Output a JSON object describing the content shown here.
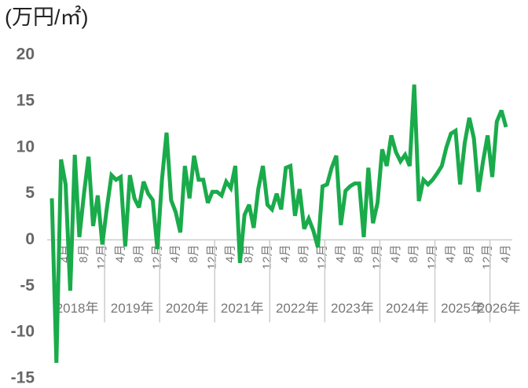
{
  "chart_data": {
    "type": "line",
    "title": "(万円/㎡)",
    "categories": [
      null,
      null,
      null,
      "4月",
      null,
      null,
      null,
      "8月",
      null,
      null,
      null,
      "12月",
      null,
      null,
      null,
      "4月",
      null,
      null,
      null,
      "8月",
      null,
      null,
      null,
      "12月",
      null,
      null,
      null,
      "4月",
      null,
      null,
      null,
      "8月",
      null,
      null,
      null,
      "12月",
      null,
      null,
      null,
      "4月",
      null,
      null,
      null,
      "8月",
      null,
      null,
      null,
      "12月",
      null,
      null,
      null,
      "4月",
      null,
      null,
      null,
      "8月",
      null,
      null,
      null,
      "12月",
      null,
      null,
      null,
      "4月",
      null,
      null,
      null,
      "8月",
      null,
      null,
      null,
      "12月",
      null,
      null,
      null,
      "4月",
      null,
      null,
      null,
      "8月",
      null,
      null,
      null,
      "12月",
      null,
      null,
      null,
      "4月",
      null,
      null,
      null,
      "8月",
      null,
      null,
      null,
      "12月",
      null,
      null,
      null,
      "4月"
    ],
    "year_labels": [
      "2018年",
      "2019年",
      "2020年",
      "2021年",
      "2022年",
      "2023年",
      "2024年",
      "2025年",
      "2026年"
    ],
    "values": [
      4.5,
      -13.3,
      8.7,
      6,
      -5.5,
      9.2,
      0.3,
      5,
      9,
      1.5,
      4.8,
      -0.5,
      3.5,
      7,
      6.5,
      6.8,
      -0.7,
      7,
      4.5,
      3.5,
      6.3,
      5,
      4.3,
      -1,
      6.5,
      11.6,
      4.3,
      3,
      0.8,
      8,
      4.5,
      9.1,
      6.5,
      6.5,
      4,
      5.2,
      5.2,
      4.8,
      6.3,
      5.6,
      8,
      -2.5,
      2.7,
      3.8,
      1.3,
      5.5,
      8,
      3.8,
      3.3,
      5,
      3.3,
      7.8,
      8,
      2.6,
      5.5,
      1.2,
      2.3,
      1,
      -0.8,
      5.8,
      6,
      7.8,
      9.1,
      1.6,
      5.3,
      5.8,
      6.1,
      6.1,
      0.3,
      7.8,
      1.8,
      4,
      9.8,
      8,
      11.3,
      9.5,
      8.5,
      9.2,
      8,
      16.8,
      4.2,
      6.5,
      6,
      6.5,
      7.2,
      8,
      10,
      11.5,
      11.8,
      6,
      10.5,
      13.2,
      11,
      5.2,
      8.5,
      11.3,
      6.8,
      12.8,
      14,
      12.2
    ],
    "color": "#1aab4b",
    "ylim": [
      -15,
      20
    ],
    "yticks": [
      -15,
      -10,
      -5,
      0,
      5,
      10,
      15,
      20
    ]
  }
}
